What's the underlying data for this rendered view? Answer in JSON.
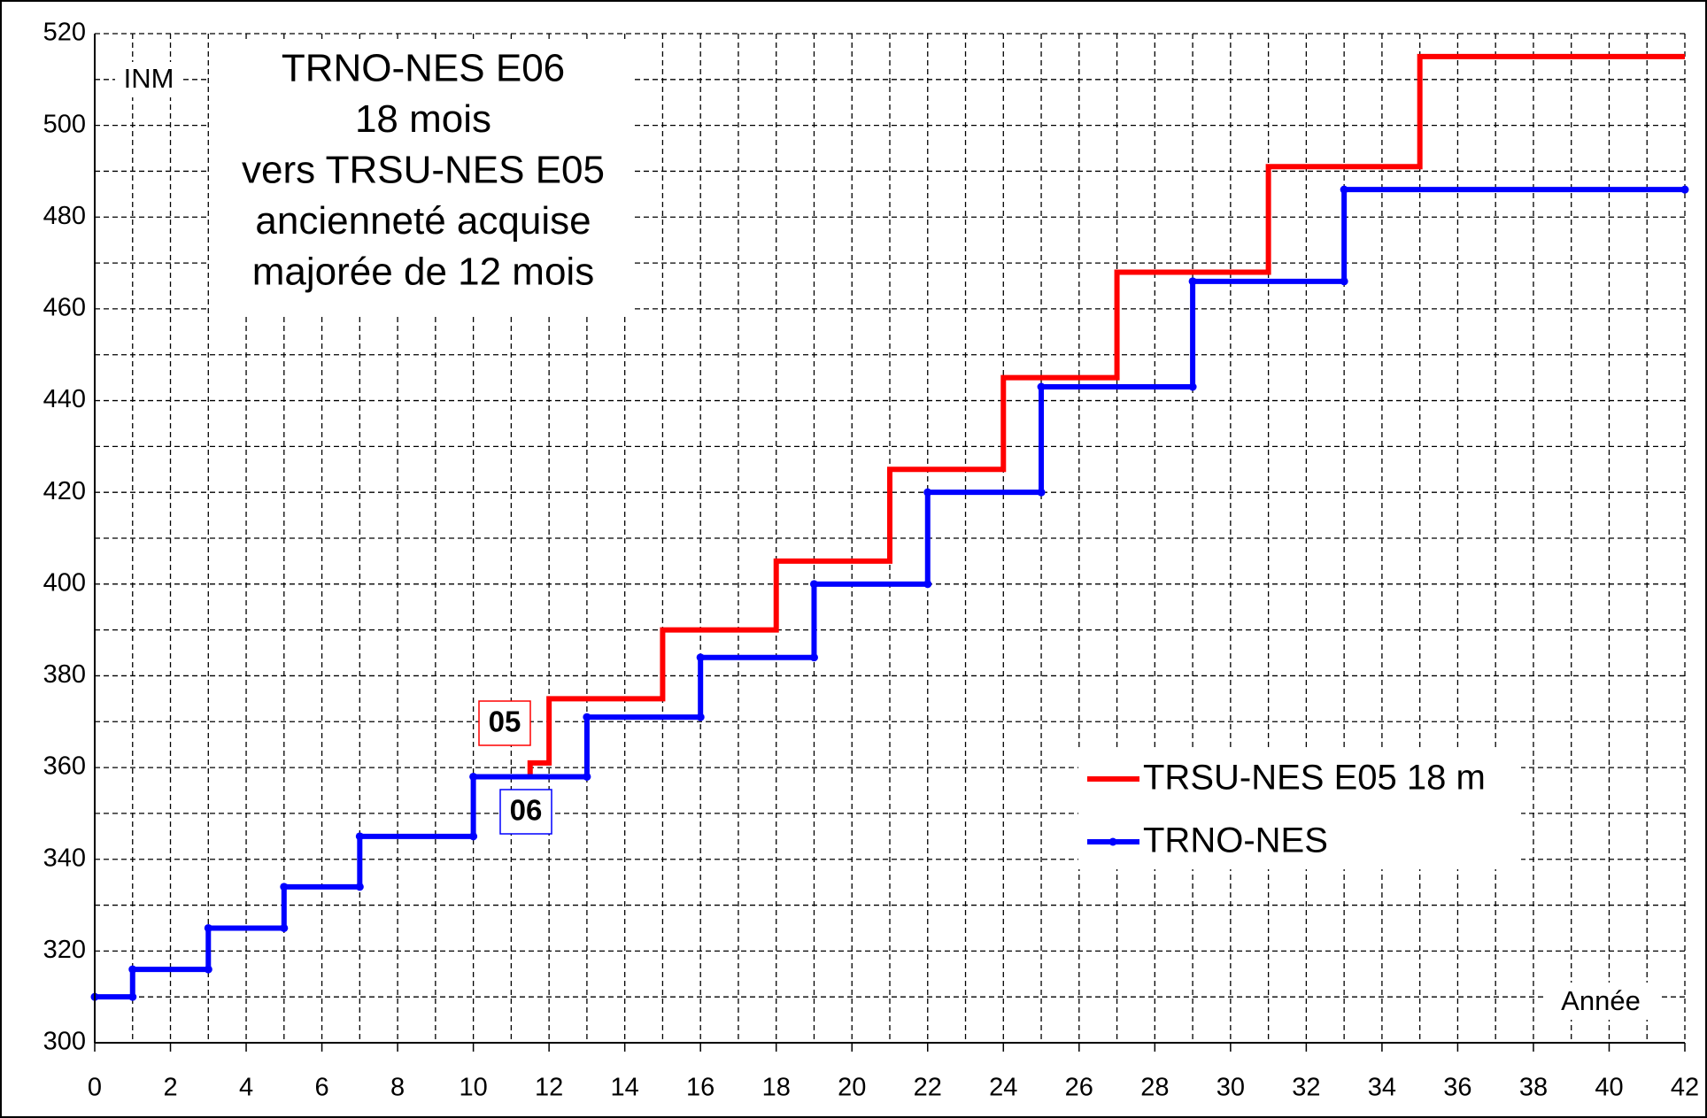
{
  "chart_data": {
    "type": "line",
    "step": true,
    "title_lines": [
      "TRNO-NES E06",
      "18 mois",
      "vers TRSU-NES E05",
      "ancienneté acquise",
      "majorée de 12 mois"
    ],
    "y_label": "INM",
    "x_label": "Année",
    "annotations": [
      {
        "text": "05",
        "color": "#ff0000"
      },
      {
        "text": "06",
        "color": "#0000ff"
      }
    ],
    "xlim": [
      0,
      42
    ],
    "xticks": [
      0,
      2,
      4,
      6,
      8,
      10,
      12,
      14,
      16,
      18,
      20,
      22,
      24,
      26,
      28,
      30,
      32,
      34,
      36,
      38,
      40,
      42
    ],
    "ylim": [
      300,
      520
    ],
    "yticks": [
      300,
      320,
      340,
      360,
      380,
      400,
      420,
      440,
      460,
      480,
      500,
      520
    ],
    "grid": true,
    "legend": "right",
    "series": [
      {
        "name": "TRSU-NES E05 18 m",
        "color": "#ff0000",
        "markers": false,
        "x": [
          11.5,
          11.5,
          12,
          12,
          15,
          15,
          18,
          18,
          21,
          21,
          24,
          24,
          27,
          27,
          31,
          31,
          35,
          35,
          42
        ],
        "values": [
          358,
          361,
          361,
          375,
          375,
          390,
          390,
          405,
          405,
          425,
          425,
          445,
          445,
          468,
          468,
          491,
          491,
          515,
          515
        ]
      },
      {
        "name": "TRNO-NES",
        "color": "#0000ff",
        "markers": true,
        "x": [
          0,
          1,
          1,
          3,
          3,
          5,
          5,
          7,
          7,
          10,
          10,
          13,
          13,
          16,
          16,
          19,
          19,
          22,
          22,
          25,
          25,
          29,
          29,
          33,
          33,
          42
        ],
        "values": [
          310,
          310,
          316,
          316,
          325,
          325,
          334,
          334,
          345,
          345,
          358,
          358,
          371,
          371,
          384,
          384,
          400,
          400,
          420,
          420,
          443,
          443,
          466,
          466,
          486,
          486
        ]
      }
    ]
  }
}
